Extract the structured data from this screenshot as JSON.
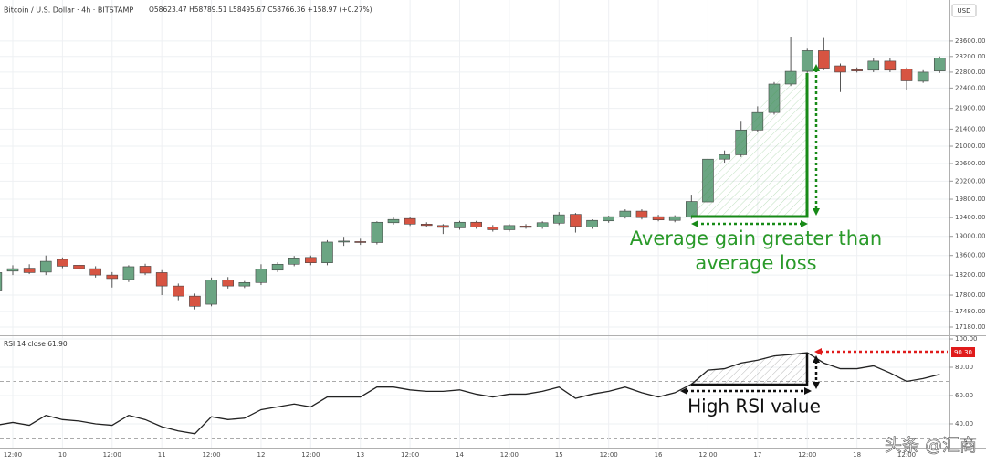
{
  "chart_data": [
    {
      "type": "candlestick",
      "title": "Bitcoin / U.S. Dollar · 4h · BITSTAMP",
      "subtitle": "O58623.47 H58789.51 L58495.67 C58766.36 +158.97 (+0.27%)",
      "axis_label": "USD",
      "log_scale": true,
      "grid": true,
      "up_color": "#6ba583",
      "down_color": "#d75442",
      "open": [
        17900,
        18280,
        18340,
        18260,
        18520,
        18400,
        18330,
        18200,
        18110,
        18380,
        18250,
        17980,
        17780,
        17620,
        18100,
        17980,
        18050,
        18300,
        18420,
        18560,
        18450,
        18880,
        18890,
        18870,
        19290,
        19380,
        19260,
        19230,
        19180,
        19300,
        19200,
        19140,
        19220,
        19200,
        19280,
        19470,
        19200,
        19330,
        19420,
        19540,
        19420,
        19340,
        19410,
        19740,
        20700,
        20800,
        21380,
        21800,
        22500,
        22820,
        23350,
        22960,
        22860,
        22850,
        23080,
        22880,
        22570,
        22830
      ],
      "high": [
        18300,
        18400,
        18420,
        18600,
        18560,
        18460,
        18380,
        18260,
        18400,
        18430,
        18300,
        18030,
        17830,
        18150,
        18160,
        18080,
        18420,
        18460,
        18590,
        18600,
        18920,
        18990,
        18950,
        19320,
        19400,
        19420,
        19300,
        19260,
        19330,
        19330,
        19240,
        19260,
        19260,
        19320,
        19520,
        19500,
        19360,
        19440,
        19580,
        19580,
        19460,
        19450,
        19900,
        20720,
        20900,
        21600,
        21950,
        22550,
        23700,
        23400,
        23680,
        23020,
        22920,
        23150,
        23150,
        22920,
        22850,
        23200
      ],
      "low": [
        17850,
        18200,
        18220,
        18200,
        18340,
        18280,
        18150,
        17950,
        18060,
        18200,
        17800,
        17700,
        17520,
        17580,
        17930,
        17940,
        18000,
        18260,
        18380,
        18400,
        18400,
        18800,
        18820,
        18830,
        19250,
        19220,
        19200,
        19050,
        19140,
        19160,
        19100,
        19100,
        19160,
        19160,
        19240,
        19080,
        19160,
        19290,
        19380,
        19360,
        19320,
        19300,
        19370,
        19700,
        20620,
        20750,
        21330,
        21750,
        22450,
        22780,
        22850,
        22300,
        22790,
        22800,
        22800,
        22350,
        22530,
        22780
      ],
      "close": [
        18250,
        18330,
        18250,
        18480,
        18380,
        18330,
        18200,
        18130,
        18370,
        18240,
        17980,
        17780,
        17580,
        18100,
        17980,
        18050,
        18320,
        18420,
        18550,
        18450,
        18880,
        18900,
        18870,
        19300,
        19360,
        19260,
        19230,
        19190,
        19300,
        19200,
        19140,
        19230,
        19190,
        19290,
        19460,
        19210,
        19340,
        19420,
        19540,
        19400,
        19350,
        19420,
        19750,
        20700,
        20800,
        21380,
        21800,
        22500,
        22820,
        23350,
        22900,
        22800,
        22830,
        23080,
        22850,
        22580,
        22800,
        23160
      ],
      "ylim": [
        17024,
        24700
      ],
      "yticks": [
        {
          "value": 17180,
          "label": "17180.00"
        },
        {
          "value": 17480,
          "label": "17480.00"
        },
        {
          "value": 17800,
          "label": "17800.00"
        },
        {
          "value": 18200,
          "label": "18200.00"
        },
        {
          "value": 18600,
          "label": "18600.00"
        },
        {
          "value": 19000,
          "label": "19000.00"
        },
        {
          "value": 19400,
          "label": "19400.00"
        },
        {
          "value": 19800,
          "label": "19800.00"
        },
        {
          "value": 20200,
          "label": "20200.00"
        },
        {
          "value": 20600,
          "label": "20600.00"
        },
        {
          "value": 21000,
          "label": "21000.00"
        },
        {
          "value": 21400,
          "label": "21400.00"
        },
        {
          "value": 21900,
          "label": "21900.00"
        },
        {
          "value": 22400,
          "label": "22400.00"
        },
        {
          "value": 22800,
          "label": "22800.00"
        },
        {
          "value": 23200,
          "label": "23200.00"
        },
        {
          "value": 23600,
          "label": "23600.00"
        }
      ],
      "annotations": [
        "Average gain greater than",
        "average loss"
      ]
    },
    {
      "type": "line",
      "title": "RSI 14 close 61.90",
      "color": "#222222",
      "grid": true,
      "values": [
        39,
        41,
        39,
        46,
        43,
        42,
        40,
        39,
        46,
        43,
        38,
        35,
        33,
        45,
        43,
        44,
        50,
        52,
        54,
        52,
        59,
        59,
        59,
        66,
        66,
        64,
        63,
        63,
        64,
        61,
        59,
        61,
        61,
        63,
        66,
        58,
        61,
        63,
        66,
        62,
        59,
        62,
        68,
        78,
        79,
        83,
        85,
        88,
        89,
        90.3,
        83,
        79,
        79,
        81,
        76,
        70,
        72,
        75
      ],
      "ylim": [
        23.2,
        102.6
      ],
      "yticks": [
        {
          "value": 40,
          "label": "40.00"
        },
        {
          "value": 60,
          "label": "60.00"
        },
        {
          "value": 80,
          "label": "80.00"
        },
        {
          "value": 100,
          "label": "100.00"
        }
      ],
      "levels": [
        70,
        30
      ],
      "marker_label": "90.30",
      "marker_color": "#e01b1b",
      "annotations": [
        "High RSI value"
      ],
      "xticks": [
        {
          "value": 1,
          "label": "12:00"
        },
        {
          "value": 4,
          "label": "10"
        },
        {
          "value": 7,
          "label": "12:00"
        },
        {
          "value": 10,
          "label": "11"
        },
        {
          "value": 13,
          "label": "12:00"
        },
        {
          "value": 16,
          "label": "12"
        },
        {
          "value": 19,
          "label": "12:00"
        },
        {
          "value": 22,
          "label": "13"
        },
        {
          "value": 25,
          "label": "12:00"
        },
        {
          "value": 28,
          "label": "14"
        },
        {
          "value": 31,
          "label": "12:00"
        },
        {
          "value": 34,
          "label": "15"
        },
        {
          "value": 37,
          "label": "12:00"
        },
        {
          "value": 40,
          "label": "16"
        },
        {
          "value": 43,
          "label": "12:00"
        },
        {
          "value": 46,
          "label": "17"
        },
        {
          "value": 49,
          "label": "12:00"
        },
        {
          "value": 52,
          "label": "18"
        },
        {
          "value": 55,
          "label": "12:00"
        }
      ]
    }
  ],
  "watermark": "头条 @汇商"
}
